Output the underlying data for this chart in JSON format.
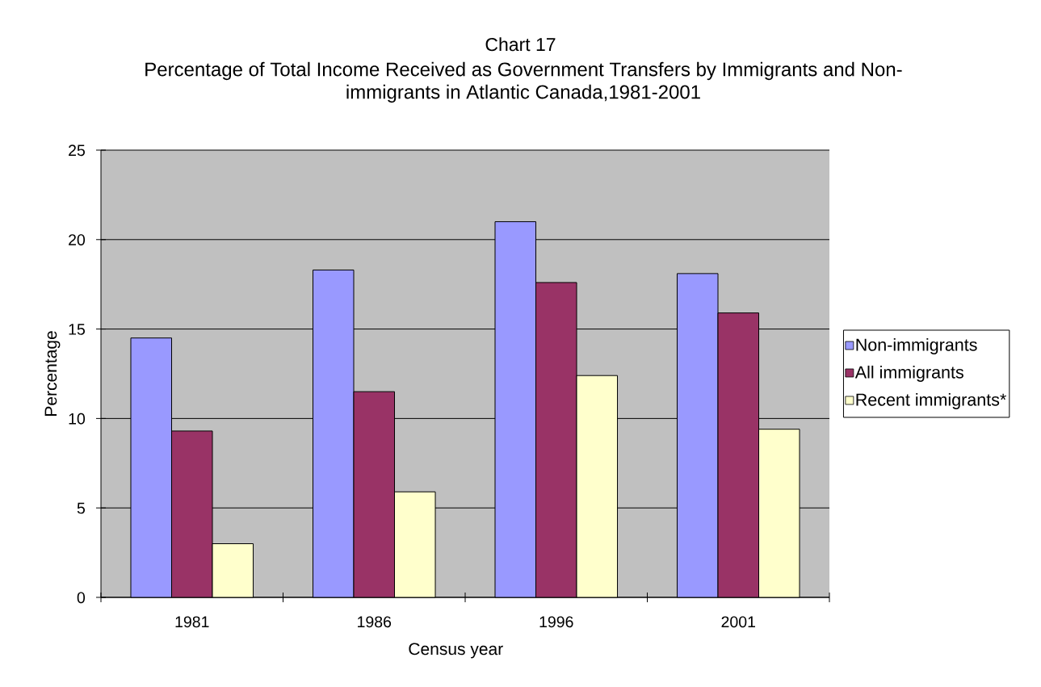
{
  "chart_data": {
    "type": "bar",
    "title": "Chart 17",
    "subtitle": "Percentage of Total Income Received as Government Transfers by Immigrants and Non-immigrants in Atlantic Canada,1981-2001",
    "xlabel": "Census year",
    "ylabel": "Percentage",
    "categories": [
      "1981",
      "1986",
      "1996",
      "2001"
    ],
    "series": [
      {
        "name": "Non-immigrants",
        "color": "#9999ff",
        "values": [
          14.5,
          18.3,
          21.0,
          18.1
        ]
      },
      {
        "name": "All immigrants",
        "color": "#993366",
        "values": [
          9.3,
          11.5,
          17.6,
          15.9
        ]
      },
      {
        "name": "Recent immigrants*",
        "color": "#ffffcc",
        "values": [
          3.0,
          5.9,
          12.4,
          9.4
        ]
      }
    ],
    "ylim": [
      0,
      25
    ],
    "yticks": [
      0,
      5,
      10,
      15,
      20,
      25
    ],
    "grid": "y",
    "legend": "right"
  }
}
